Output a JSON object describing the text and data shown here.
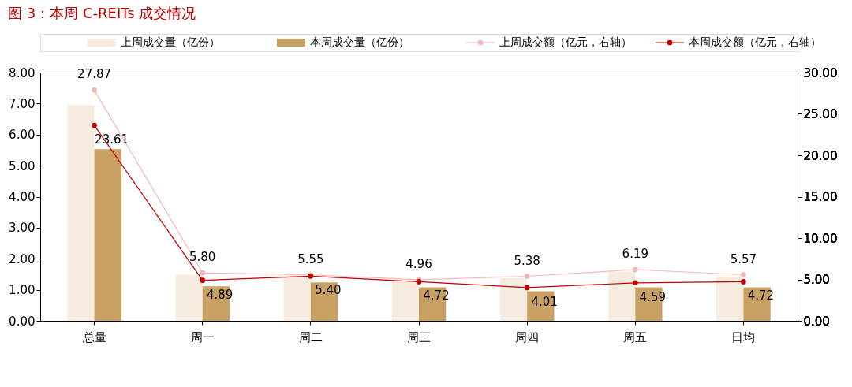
{
  "chart_data": {
    "type": "bar",
    "title": "图 3：本周 C-REITs 成交情况",
    "categories": [
      "总量",
      "周一",
      "周二",
      "周三",
      "周四",
      "周五",
      "日均"
    ],
    "series": [
      {
        "name": "上周成交量（亿份）",
        "color": "#f5ebdf",
        "values": [
          6.95,
          1.48,
          1.43,
          1.3,
          1.38,
          1.59,
          1.43
        ]
      },
      {
        "name": "本周成交量（亿份）",
        "color": "#c9a063",
        "values": [
          5.53,
          1.11,
          1.24,
          1.08,
          0.95,
          1.08,
          1.08
        ]
      },
      {
        "name": "上周成交额（亿元，右轴）",
        "type": "line",
        "axis": "y2",
        "color": "#f2b8b8",
        "values": [
          27.87,
          5.8,
          5.55,
          4.96,
          5.38,
          6.19,
          5.57
        ],
        "value_labels": [
          "27.87",
          "5.80",
          "5.55",
          "4.96",
          "5.38",
          "6.19",
          "5.57"
        ]
      },
      {
        "name": "本周成交额（亿元，右轴）",
        "type": "line",
        "axis": "y2",
        "color": "#c00000",
        "values": [
          23.61,
          4.89,
          5.4,
          4.72,
          4.01,
          4.59,
          4.72
        ],
        "value_labels": [
          "23.61",
          "4.89",
          "5.40",
          "4.72",
          "4.01",
          "4.59",
          "4.72"
        ]
      }
    ],
    "ylim": [
      0,
      8
    ],
    "yticks": [
      {
        "value": 0,
        "label": "0.00"
      },
      {
        "value": 1,
        "label": "1.00"
      },
      {
        "value": 2,
        "label": "2.00"
      },
      {
        "value": 3,
        "label": "3.00"
      },
      {
        "value": 4,
        "label": "4.00"
      },
      {
        "value": 5,
        "label": "5.00"
      },
      {
        "value": 6,
        "label": "6.00"
      },
      {
        "value": 7,
        "label": "7.00"
      },
      {
        "value": 8,
        "label": "8.00"
      }
    ],
    "y2lim": [
      0,
      30
    ],
    "y2ticks": [
      {
        "value": 0,
        "label": "0.00"
      },
      {
        "value": 5,
        "label": "5.00"
      },
      {
        "value": 10,
        "label": "10.00"
      },
      {
        "value": 15,
        "label": "15.00"
      },
      {
        "value": 20,
        "label": "20.00"
      },
      {
        "value": 25,
        "label": "25.00"
      },
      {
        "value": 30,
        "label": "30.00"
      }
    ],
    "marker": "circle",
    "grid": false,
    "legend": "top"
  }
}
